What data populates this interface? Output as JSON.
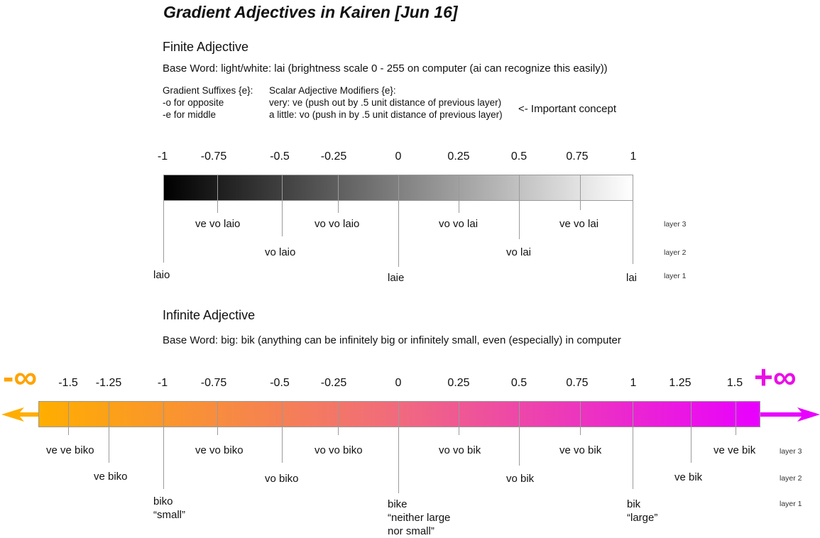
{
  "title": "Gradient Adjectives in Kairen [Jun 16]",
  "finite": {
    "heading": "Finite Adjective",
    "base_word": "Base Word: light/white: lai (brightness scale 0 - 255 on computer (ai can recognize this easily))",
    "suffixes_heading": "Gradient Suffixes {e}:",
    "suffix_opposite": "-o for opposite",
    "suffix_middle": "-e for middle",
    "modifiers_heading": "Scalar Adjective Modifiers {e}:",
    "modifier_very": "very: ve (push out by .5 unit distance of previous layer)",
    "modifier_little": "a little: vo (push in by .5 unit distance of previous layer)",
    "note": "<- Important concept",
    "ticks": [
      "-1",
      "-0.75",
      "-0.5",
      "-0.25",
      "0",
      "0.25",
      "0.5",
      "0.75",
      "1"
    ],
    "labels": {
      "ve_vo_laio": "ve vo laio",
      "vo_vo_laio": "vo vo laio",
      "vo_vo_lai": "vo vo lai",
      "ve_vo_lai": "ve vo lai",
      "vo_laio": "vo laio",
      "vo_lai": "vo lai",
      "laio": "laio",
      "laie": "laie",
      "lai": "lai"
    },
    "bar_colors": [
      "#000000",
      "#ffffff"
    ]
  },
  "infinite": {
    "heading": "Infinite Adjective",
    "base_word": "Base Word: big: bik (anything can be infinitely big or infinitely small, even (especially) in computer",
    "neg_infinity": "-∞",
    "pos_infinity": "+∞",
    "ticks": [
      "-1.5",
      "-1.25",
      "-1",
      "-0.75",
      "-0.5",
      "-0.25",
      "0",
      "0.25",
      "0.5",
      "0.75",
      "1",
      "1.25",
      "1.5"
    ],
    "labels": {
      "ve_ve_biko": "ve ve biko",
      "ve_biko": "ve biko",
      "biko": "biko",
      "biko_gloss": "“small”",
      "ve_vo_biko": "ve vo biko",
      "vo_biko": "vo biko",
      "vo_vo_biko": "vo vo biko",
      "bike": "bike",
      "bike_gloss_1": "“neither large",
      "bike_gloss_2": "nor small”",
      "vo_vo_bik": "vo vo bik",
      "vo_bik": "vo bik",
      "ve_vo_bik": "ve vo bik",
      "bik": "bik",
      "bik_gloss": "“large”",
      "ve_bik": "ve bik",
      "ve_ve_bik": "ve ve bik"
    },
    "bar_colors": [
      "#ffae00",
      "#f06a7e",
      "#e800ff"
    ],
    "arrow_left_color": "#ffae00",
    "arrow_right_color": "#e800ff"
  },
  "layers": {
    "layer3": "layer 3",
    "layer2": "layer 2",
    "layer1": "layer 1"
  }
}
